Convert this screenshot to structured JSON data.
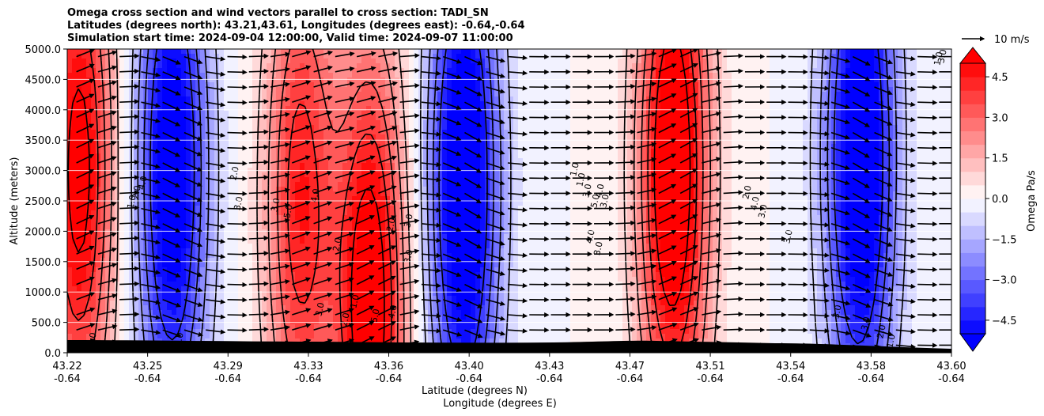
{
  "chart_data": {
    "type": "heatmap",
    "title_lines": [
      "Omega cross section and wind vectors parallel to cross section: TADI_SN",
      "Latitudes (degrees north): 43.21,43.61, Longitudes (degrees east): -0.64,-0.64",
      "Simulation start time: 2024-09-04 12:00:00, Valid time: 2024-09-07 11:00:00"
    ],
    "ylabel": "Altitude (meters)",
    "xlabel": "Latitude (degrees N)",
    "xlabel2": "Longitude (degrees E)",
    "ylim": [
      0,
      5000
    ],
    "y_ticks": [
      "0.0",
      "500.0",
      "1000.0",
      "1500.0",
      "2000.0",
      "2500.0",
      "3000.0",
      "3500.0",
      "4000.0",
      "4500.0",
      "5000.0"
    ],
    "x_ticks": [
      {
        "lat": "43.22",
        "lon": "-0.64"
      },
      {
        "lat": "43.25",
        "lon": "-0.64"
      },
      {
        "lat": "43.29",
        "lon": "-0.64"
      },
      {
        "lat": "43.33",
        "lon": "-0.64"
      },
      {
        "lat": "43.36",
        "lon": "-0.64"
      },
      {
        "lat": "43.40",
        "lon": "-0.64"
      },
      {
        "lat": "43.43",
        "lon": "-0.64"
      },
      {
        "lat": "43.47",
        "lon": "-0.64"
      },
      {
        "lat": "43.51",
        "lon": "-0.64"
      },
      {
        "lat": "43.54",
        "lon": "-0.64"
      },
      {
        "lat": "43.58",
        "lon": "-0.64"
      },
      {
        "lat": "43.60",
        "lon": "-0.64"
      }
    ],
    "grid": "horizontal",
    "colorbar": {
      "label": "Omega Pa/s",
      "range": [
        -5,
        5
      ],
      "levels": 20,
      "extend": "both",
      "ticks": [
        "4.5",
        "3.0",
        "1.5",
        "0.0",
        "−1.5",
        "−3.0",
        "−4.5"
      ]
    },
    "quiver_key": {
      "label": "10 m/s",
      "value": 10
    },
    "contour_labels": [
      "3.0",
      "4.0",
      "2.0",
      "1.0",
      "2.0",
      "3.0",
      "4.0",
      "5.0",
      "3.0",
      "2.0",
      "1.0",
      "5.0",
      "4.0",
      "3.0",
      "2.0",
      "1.0",
      "1.0",
      "3.0",
      "5.0",
      "4.0",
      "3.0",
      "2.0",
      "4.0",
      "3.0",
      "3.0",
      "3.0",
      "2.0",
      "1.0",
      "3.0",
      "4.0",
      "3.0",
      "2.0",
      "2.0",
      "1.0",
      "3.0",
      "2.0",
      "3.0"
    ],
    "field_features": [
      {
        "sign": "positive",
        "lat": 43.225,
        "alt": 3000,
        "strength": 5.5
      },
      {
        "sign": "negative",
        "lat": 43.265,
        "alt": 3000,
        "strength": 6.0
      },
      {
        "sign": "positive",
        "lat": 43.32,
        "alt": 2500,
        "strength": 4.5
      },
      {
        "sign": "positive",
        "lat": 43.35,
        "alt": 750,
        "strength": 6.0
      },
      {
        "sign": "negative",
        "lat": 43.39,
        "alt": 2800,
        "strength": 6.5
      },
      {
        "sign": "positive",
        "lat": 43.48,
        "alt": 3000,
        "strength": 6.5
      },
      {
        "sign": "negative",
        "lat": 43.56,
        "alt": 3200,
        "strength": 6.5
      }
    ]
  }
}
